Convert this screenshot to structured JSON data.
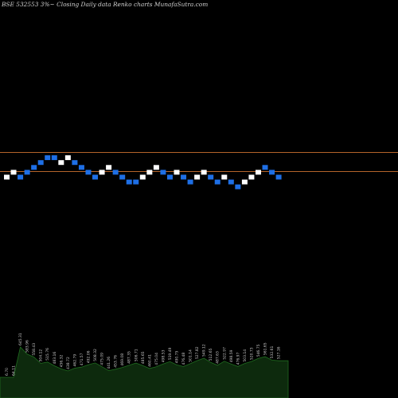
{
  "title": "BSE 532553 3%~  Closing Daily data  Renko  charts MunafaSutra.com",
  "colors": {
    "background": "#000000",
    "up_brick": "#ffffff",
    "down_brick": "#1e6fe6",
    "reference_line": "#b4642a",
    "volume_fill": "#0d2a0d",
    "volume_edge": "#1f6b1f",
    "volume_label": "#c8c8c8"
  },
  "chart_data": {
    "type": "renko",
    "title": "BSE 532553 3%~  Closing Daily data  Renko  charts MunafaSutra.com",
    "brick_levels": [
      5,
      6,
      5,
      6,
      7,
      8,
      9,
      9,
      8,
      9,
      8,
      7,
      6,
      5,
      6,
      7,
      6,
      5,
      4,
      4,
      5,
      6,
      7,
      6,
      5,
      6,
      5,
      4,
      5,
      6,
      5,
      4,
      5,
      4,
      3,
      4,
      5,
      6,
      7,
      6,
      5
    ],
    "brick_directions": [
      "up",
      "up",
      "down",
      "down",
      "down",
      "down",
      "down",
      "down",
      "up",
      "up",
      "down",
      "down",
      "down",
      "down",
      "up",
      "up",
      "down",
      "down",
      "down",
      "down",
      "up",
      "up",
      "up",
      "down",
      "down",
      "up",
      "down",
      "down",
      "up",
      "up",
      "down",
      "down",
      "up",
      "down",
      "down",
      "up",
      "up",
      "up",
      "down",
      "down",
      "down"
    ],
    "reference_levels": [
      "upper",
      "lower"
    ],
    "volume_labels": [
      "6.70",
      "64.11",
      "645.31",
      "583.96",
      "558.43",
      "504.12",
      "515.76",
      "483.16",
      "456.32",
      "438.72",
      "462.79",
      "471.57",
      "492.06",
      "508.32",
      "475.09",
      "441.26",
      "453.76",
      "469.08",
      "487.35",
      "506.71",
      "485.65",
      "460.41",
      "475.04",
      "498.53",
      "519.49",
      "490.75",
      "476.48",
      "501.14",
      "527.82",
      "549.12",
      "512.65",
      "487.63",
      "522.97",
      "498.59",
      "476.97",
      "503.14",
      "520.73",
      "546.75",
      "561.65",
      "532.61",
      "527.16"
    ]
  }
}
